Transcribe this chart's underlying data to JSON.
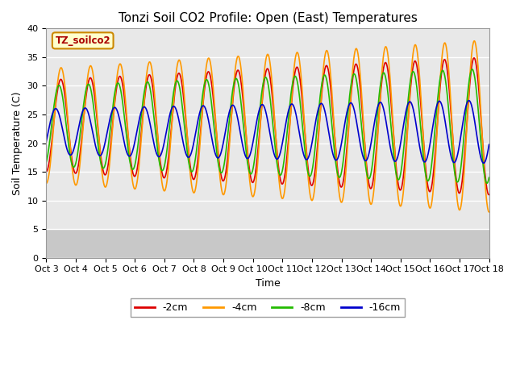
{
  "title": "Tonzi Soil CO2 Profile: Open (East) Temperatures",
  "xlabel": "Time",
  "ylabel": "Soil Temperature (C)",
  "ylim": [
    0,
    40
  ],
  "n_days": 15,
  "tick_labels": [
    "Oct 3",
    "Oct 4",
    "Oct 5",
    "Oct 6",
    "Oct 7",
    "Oct 8",
    "Oct 9",
    "Oct 10",
    "Oct 11",
    "Oct 12",
    "Oct 13",
    "Oct 14",
    "Oct 15",
    "Oct 16",
    "Oct 17",
    "Oct 18"
  ],
  "legend_label": "TZ_soilco2",
  "series_labels": [
    "-2cm",
    "-4cm",
    "-8cm",
    "-16cm"
  ],
  "series_colors": [
    "#dd0000",
    "#ff9900",
    "#22bb00",
    "#0000cc"
  ],
  "plot_bg_upper": "#e8e8e8",
  "plot_bg_lower": "#d0d0d0",
  "title_fontsize": 11,
  "axis_fontsize": 9,
  "tick_fontsize": 8,
  "legend_box_color": "#ffffcc",
  "legend_box_edge": "#cc8800",
  "legend_label_color": "#aa0000"
}
